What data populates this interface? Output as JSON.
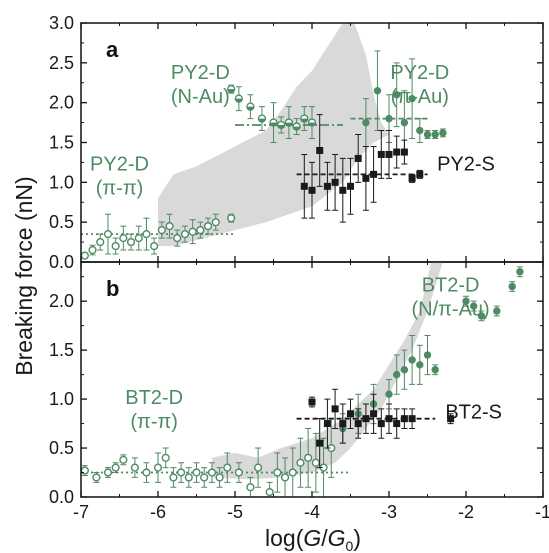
{
  "colors": {
    "green": "#4e8a64",
    "black": "#1a1a1a",
    "band": "#d9d9d9"
  },
  "chart_data": [
    {
      "type": "scatter",
      "panel_label": "a",
      "xlim": [
        -7,
        -1
      ],
      "ylim": [
        0.0,
        3.0
      ],
      "yticks": [
        "0.0",
        "0.5",
        "1.0",
        "1.5",
        "2.0",
        "2.5",
        "3.0"
      ],
      "band_upper": [
        [
          -6.0,
          0.8
        ],
        [
          -5.8,
          1.1
        ],
        [
          -5.5,
          1.2
        ],
        [
          -5.2,
          1.35
        ],
        [
          -4.9,
          1.5
        ],
        [
          -4.6,
          1.65
        ],
        [
          -4.4,
          1.9
        ],
        [
          -4.2,
          2.2
        ],
        [
          -4.0,
          2.4
        ],
        [
          -3.8,
          2.7
        ],
        [
          -3.6,
          3.0
        ],
        [
          -3.45,
          3.0
        ],
        [
          -3.3,
          2.6
        ],
        [
          -3.2,
          2.1
        ],
        [
          -3.1,
          1.75
        ],
        [
          -3.0,
          1.6
        ]
      ],
      "band_lower": [
        [
          -3.0,
          1.6
        ],
        [
          -3.2,
          1.5
        ],
        [
          -3.4,
          1.3
        ],
        [
          -3.6,
          1.0
        ],
        [
          -3.8,
          0.85
        ],
        [
          -4.0,
          0.7
        ],
        [
          -4.3,
          0.6
        ],
        [
          -4.6,
          0.5
        ],
        [
          -5.0,
          0.4
        ],
        [
          -5.4,
          0.3
        ],
        [
          -5.8,
          0.2
        ],
        [
          -6.0,
          0.2
        ]
      ],
      "series": [
        {
          "name": "PY2-D (π-π)",
          "marker": "open-circle",
          "color": "#4e8a64",
          "points": [
            [
              -6.95,
              0.08,
              0.0
            ],
            [
              -6.85,
              0.15,
              0.06
            ],
            [
              -6.75,
              0.25,
              0.1
            ],
            [
              -6.65,
              0.35,
              0.25
            ],
            [
              -6.55,
              0.2,
              0.1
            ],
            [
              -6.45,
              0.3,
              0.15
            ],
            [
              -6.35,
              0.25,
              0.1
            ],
            [
              -6.25,
              0.3,
              0.15
            ],
            [
              -6.15,
              0.35,
              0.2
            ],
            [
              -6.05,
              0.2,
              0.1
            ],
            [
              -5.95,
              0.4,
              0.1
            ],
            [
              -5.85,
              0.45,
              0.15
            ],
            [
              -5.75,
              0.3,
              0.1
            ],
            [
              -5.65,
              0.35,
              0.1
            ],
            [
              -5.55,
              0.38,
              0.15
            ],
            [
              -5.45,
              0.4,
              0.1
            ],
            [
              -5.35,
              0.45,
              0.1
            ],
            [
              -5.25,
              0.5,
              0.1
            ],
            [
              -5.05,
              0.55,
              0.05
            ]
          ],
          "fit": {
            "x": [
              -7.0,
              -5.0
            ],
            "y": 0.35
          }
        },
        {
          "name": "PY2-D (N-Au)",
          "marker": "half-circle",
          "color": "#4e8a64",
          "points": [
            [
              -5.05,
              2.17,
              0.05
            ],
            [
              -4.95,
              2.05,
              0.15
            ],
            [
              -4.8,
              1.95,
              0.15
            ],
            [
              -4.65,
              1.8,
              0.15
            ],
            [
              -4.5,
              1.75,
              0.25
            ],
            [
              -4.4,
              1.72,
              0.1
            ],
            [
              -4.3,
              1.75,
              0.2
            ],
            [
              -4.2,
              1.7,
              0.1
            ],
            [
              -4.1,
              1.8,
              0.15
            ],
            [
              -4.0,
              1.75,
              0.2
            ]
          ],
          "fit": {
            "x": [
              -5.0,
              -3.6
            ],
            "y": 1.72
          }
        },
        {
          "name": "PY2-D (π-Au)",
          "marker": "filled-circle",
          "color": "#4e8a64",
          "points": [
            [
              -3.3,
              1.75,
              0.3
            ],
            [
              -3.15,
              2.15,
              0.5
            ],
            [
              -3.0,
              1.8,
              0.3
            ],
            [
              -2.9,
              2.1,
              0.4
            ],
            [
              -2.8,
              1.75,
              0.4
            ],
            [
              -2.7,
              2.05,
              0.5
            ],
            [
              -2.6,
              1.65,
              0.15
            ],
            [
              -2.5,
              1.6,
              0.05
            ],
            [
              -2.4,
              1.6,
              0.05
            ],
            [
              -2.3,
              1.62,
              0.05
            ]
          ],
          "fit": {
            "x": [
              -3.5,
              -2.5
            ],
            "y": 1.8
          }
        },
        {
          "name": "PY2-S",
          "marker": "filled-square",
          "color": "#1a1a1a",
          "points": [
            [
              -4.1,
              0.95,
              0.4
            ],
            [
              -4.0,
              0.9,
              0.35
            ],
            [
              -3.9,
              1.4,
              0.45
            ],
            [
              -3.8,
              0.95,
              0.3
            ],
            [
              -3.7,
              1.0,
              0.35
            ],
            [
              -3.6,
              0.9,
              0.4
            ],
            [
              -3.5,
              0.95,
              0.35
            ],
            [
              -3.4,
              1.3,
              0.3
            ],
            [
              -3.3,
              1.05,
              0.4
            ],
            [
              -3.2,
              1.1,
              0.35
            ],
            [
              -3.1,
              1.35,
              0.3
            ],
            [
              -3.0,
              1.35,
              0.3
            ],
            [
              -2.9,
              1.38,
              0.2
            ],
            [
              -2.8,
              1.38,
              0.15
            ],
            [
              -2.7,
              1.05,
              0.05
            ],
            [
              -2.6,
              1.1,
              0.05
            ]
          ],
          "fit": {
            "x": [
              -4.2,
              -2.5
            ],
            "y": 1.1
          }
        }
      ],
      "annotations": [
        {
          "lines": [
            "PY2-D",
            "(N-Au)"
          ],
          "at": [
            -5.45,
            2.3
          ],
          "color": "#4e8a64"
        },
        {
          "lines": [
            "PY2-D",
            "(π-Au)"
          ],
          "at": [
            -2.6,
            2.3
          ],
          "color": "#4e8a64"
        },
        {
          "lines": [
            "PY2-D",
            "(π-π)"
          ],
          "at": [
            -6.5,
            1.15
          ],
          "color": "#4e8a64"
        },
        {
          "lines": [
            "PY2-S"
          ],
          "at": [
            -2.0,
            1.15
          ],
          "color": "#1a1a1a"
        }
      ]
    },
    {
      "type": "scatter",
      "panel_label": "b",
      "xlim": [
        -7,
        -1
      ],
      "ylim": [
        0.0,
        2.4
      ],
      "yticks": [
        "0.0",
        "0.5",
        "1.0",
        "1.5",
        "2.0"
      ],
      "band_upper": [
        [
          -5.3,
          0.4
        ],
        [
          -5.0,
          0.45
        ],
        [
          -4.7,
          0.4
        ],
        [
          -4.4,
          0.5
        ],
        [
          -4.2,
          0.55
        ],
        [
          -4.0,
          0.6
        ],
        [
          -3.8,
          0.7
        ],
        [
          -3.6,
          0.8
        ],
        [
          -3.4,
          0.95
        ],
        [
          -3.2,
          1.1
        ],
        [
          -3.0,
          1.35
        ],
        [
          -2.8,
          1.6
        ],
        [
          -2.6,
          1.9
        ],
        [
          -2.45,
          2.4
        ],
        [
          -2.3,
          2.4
        ]
      ],
      "band_lower": [
        [
          -2.3,
          2.4
        ],
        [
          -2.5,
          1.9
        ],
        [
          -2.7,
          1.5
        ],
        [
          -2.9,
          1.2
        ],
        [
          -3.1,
          0.9
        ],
        [
          -3.3,
          0.7
        ],
        [
          -3.5,
          0.5
        ],
        [
          -3.7,
          0.35
        ],
        [
          -4.0,
          0.25
        ],
        [
          -4.4,
          0.2
        ],
        [
          -4.8,
          0.18
        ],
        [
          -5.3,
          0.2
        ]
      ],
      "series": [
        {
          "name": "BT2-D (π-π)",
          "marker": "open-circle",
          "color": "#4e8a64",
          "points": [
            [
              -6.95,
              0.27,
              0.05
            ],
            [
              -6.8,
              0.2,
              0.05
            ],
            [
              -6.65,
              0.25,
              0.05
            ],
            [
              -6.55,
              0.3,
              0.05
            ],
            [
              -6.45,
              0.38,
              0.05
            ],
            [
              -6.3,
              0.3,
              0.1
            ],
            [
              -6.15,
              0.25,
              0.1
            ],
            [
              -6.0,
              0.3,
              0.15
            ],
            [
              -5.9,
              0.4,
              0.1
            ],
            [
              -5.8,
              0.2,
              0.1
            ],
            [
              -5.7,
              0.25,
              0.1
            ],
            [
              -5.6,
              0.2,
              0.1
            ],
            [
              -5.5,
              0.25,
              0.1
            ],
            [
              -5.4,
              0.2,
              0.1
            ],
            [
              -5.3,
              0.25,
              0.1
            ],
            [
              -5.2,
              0.2,
              0.1
            ],
            [
              -5.1,
              0.3,
              0.15
            ],
            [
              -4.95,
              0.25,
              0.1
            ],
            [
              -4.8,
              0.1,
              0.1
            ],
            [
              -4.7,
              0.3,
              0.2
            ],
            [
              -4.55,
              0.05,
              0.1
            ],
            [
              -4.45,
              0.25,
              0.2
            ],
            [
              -4.35,
              0.2,
              0.2
            ],
            [
              -4.25,
              0.25,
              0.25
            ],
            [
              -4.15,
              0.35,
              0.25
            ],
            [
              -4.05,
              0.4,
              0.3
            ],
            [
              -3.95,
              0.35,
              0.3
            ],
            [
              -3.85,
              0.3,
              0.3
            ],
            [
              -3.75,
              0.5,
              0.3
            ]
          ],
          "fit": {
            "x": [
              -7.0,
              -3.5
            ],
            "y": 0.25
          }
        },
        {
          "name": "BT2-D (N/π-Au)",
          "marker": "filled-circle",
          "color": "#4e8a64",
          "points": [
            [
              -3.6,
              0.7,
              0.15
            ],
            [
              -3.4,
              0.85,
              0.2
            ],
            [
              -3.2,
              0.95,
              0.2
            ],
            [
              -3.0,
              1.05,
              0.15
            ],
            [
              -2.9,
              1.25,
              0.2
            ],
            [
              -2.8,
              1.3,
              0.2
            ],
            [
              -2.7,
              1.4,
              0.25
            ],
            [
              -2.6,
              1.35,
              0.2
            ],
            [
              -2.5,
              1.45,
              0.2
            ],
            [
              -2.4,
              1.3,
              0.05
            ],
            [
              -2.0,
              2.0,
              0.05
            ],
            [
              -1.9,
              1.95,
              0.05
            ],
            [
              -1.8,
              1.85,
              0.05
            ],
            [
              -1.6,
              1.9,
              0.05
            ],
            [
              -1.4,
              2.15,
              0.05
            ],
            [
              -1.3,
              2.3,
              0.05
            ]
          ],
          "fit": null
        },
        {
          "name": "BT2-S",
          "marker": "filled-square",
          "color": "#1a1a1a",
          "points": [
            [
              -4.0,
              0.97,
              0.05
            ],
            [
              -3.9,
              0.55,
              0.25
            ],
            [
              -3.8,
              0.75,
              0.25
            ],
            [
              -3.7,
              0.9,
              0.2
            ],
            [
              -3.6,
              0.75,
              0.2
            ],
            [
              -3.5,
              0.85,
              0.15
            ],
            [
              -3.4,
              0.75,
              0.15
            ],
            [
              -3.3,
              0.8,
              0.15
            ],
            [
              -3.2,
              0.85,
              0.2
            ],
            [
              -3.1,
              0.75,
              0.15
            ],
            [
              -3.0,
              0.8,
              0.15
            ],
            [
              -2.9,
              0.75,
              0.15
            ],
            [
              -2.8,
              0.8,
              0.1
            ],
            [
              -2.7,
              0.8,
              0.1
            ],
            [
              -2.2,
              0.8,
              0.05
            ]
          ],
          "fit": {
            "x": [
              -4.2,
              -2.4
            ],
            "y": 0.8
          }
        }
      ],
      "annotations": [
        {
          "lines": [
            "BT2-D",
            "(N/π-Au)"
          ],
          "at": [
            -2.2,
            2.1
          ],
          "color": "#4e8a64"
        },
        {
          "lines": [
            "BT2-D",
            "(π-π)"
          ],
          "at": [
            -6.05,
            0.95
          ],
          "color": "#4e8a64"
        },
        {
          "lines": [
            "BT2-S"
          ],
          "at": [
            -1.9,
            0.8
          ],
          "color": "#1a1a1a"
        }
      ]
    }
  ],
  "axes": {
    "ylabel": "Breaking force (nN)",
    "xlabel_main": "log(",
    "xlabel_italic": "G",
    "xlabel_slash": "/",
    "xlabel_sub": "0",
    "xlabel_close": ")",
    "xticks": [
      "-7",
      "-6",
      "-5",
      "-4",
      "-3",
      "-2",
      "-1"
    ]
  }
}
